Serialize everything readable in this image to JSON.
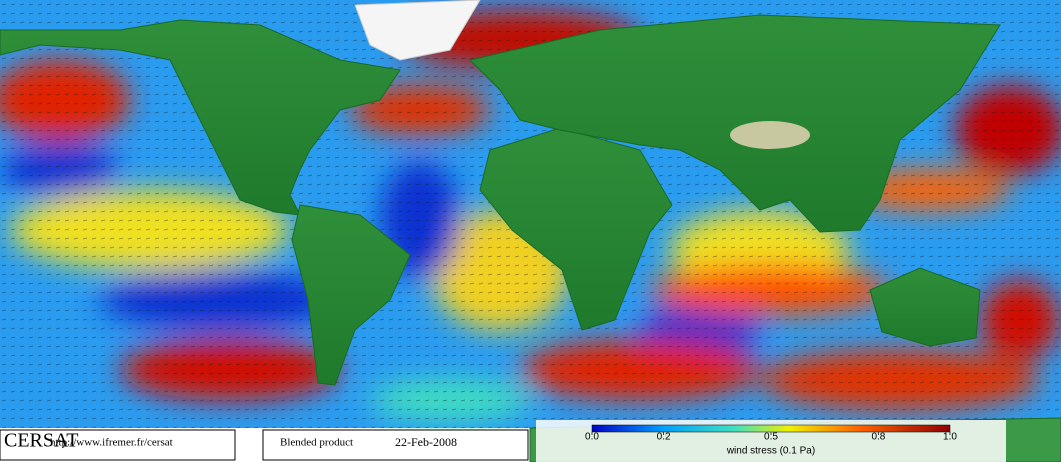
{
  "footer": {
    "logo": "CERSAT",
    "url": "http://www.ifremer.fr/cersat",
    "product": "Blended product",
    "date": "22-Feb-2008"
  },
  "colorbar": {
    "label": "wind stress (0.1 Pa)",
    "range": [
      0,
      1
    ],
    "ticks": [
      {
        "value": 0,
        "label": "0.0"
      },
      0.2,
      0.5,
      0.8,
      {
        "value": 1,
        "label": "1.0"
      }
    ]
  }
}
